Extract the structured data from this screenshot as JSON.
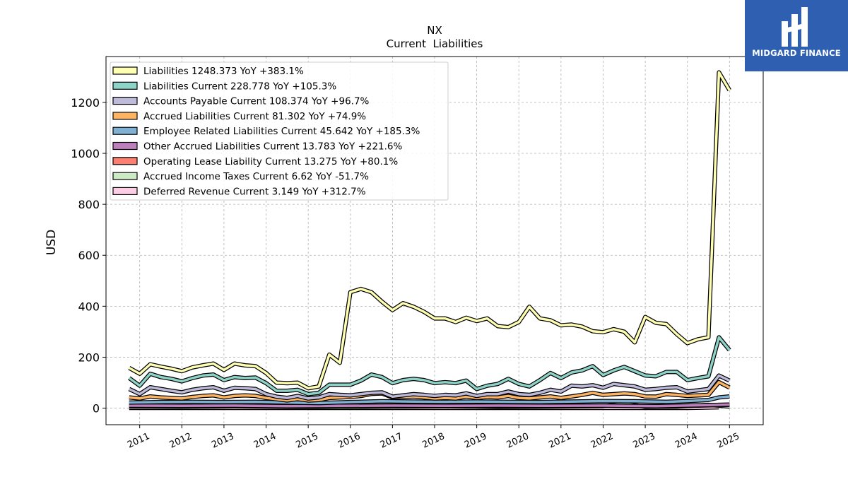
{
  "chart_data": {
    "type": "line",
    "title": "NX",
    "subtitle": "Current  Liabilities",
    "ylabel": "USD",
    "xlabel": "",
    "ylim": [
      -65,
      1380
    ],
    "xlim": [
      2010.2,
      2025.8
    ],
    "yticks": [
      0,
      200,
      400,
      600,
      800,
      1000,
      1200
    ],
    "xticks": [
      "2011",
      "2012",
      "2013",
      "2014",
      "2015",
      "2016",
      "2017",
      "2018",
      "2019",
      "2020",
      "2021",
      "2022",
      "2023",
      "2024",
      "2025"
    ],
    "grid": true,
    "legend_position": "upper-left",
    "series": [
      {
        "name": "Liabilities",
        "legend": "Liabilities  1248.373 YoY +383.1%",
        "color": "#ffffb3",
        "x": [
          2010.75,
          2011.0,
          2011.25,
          2011.5,
          2011.75,
          2012.0,
          2012.25,
          2012.5,
          2012.75,
          2013.0,
          2013.25,
          2013.5,
          2013.75,
          2014.0,
          2014.25,
          2014.5,
          2014.75,
          2015.0,
          2015.25,
          2015.5,
          2015.75,
          2016.0,
          2016.25,
          2016.5,
          2016.75,
          2017.0,
          2017.25,
          2017.5,
          2017.75,
          2018.0,
          2018.25,
          2018.5,
          2018.75,
          2019.0,
          2019.25,
          2019.5,
          2019.75,
          2020.0,
          2020.25,
          2020.5,
          2020.75,
          2021.0,
          2021.25,
          2021.5,
          2021.75,
          2022.0,
          2022.25,
          2022.5,
          2022.75,
          2023.0,
          2023.25,
          2023.5,
          2023.75,
          2024.0,
          2024.25,
          2024.5,
          2024.75,
          2025.0
        ],
        "y": [
          158,
          135,
          172,
          163,
          155,
          145,
          160,
          168,
          175,
          150,
          175,
          168,
          165,
          138,
          100,
          98,
          100,
          78,
          85,
          210,
          178,
          455,
          468,
          455,
          418,
          385,
          412,
          398,
          378,
          352,
          352,
          338,
          355,
          342,
          352,
          322,
          318,
          338,
          398,
          352,
          345,
          325,
          328,
          320,
          302,
          298,
          310,
          300,
          258,
          358,
          335,
          330,
          290,
          255,
          270,
          278,
          1318,
          1248
        ]
      },
      {
        "name": "Liabilities Current",
        "legend": "Liabilities Current  228.778 YoY +105.3%",
        "color": "#8dd3c7",
        "x": [
          2010.75,
          2011.0,
          2011.25,
          2011.5,
          2011.75,
          2012.0,
          2012.25,
          2012.5,
          2012.75,
          2013.0,
          2013.25,
          2013.5,
          2013.75,
          2014.0,
          2014.25,
          2014.5,
          2014.75,
          2015.0,
          2015.25,
          2015.5,
          2015.75,
          2016.0,
          2016.25,
          2016.5,
          2016.75,
          2017.0,
          2017.25,
          2017.5,
          2017.75,
          2018.0,
          2018.25,
          2018.5,
          2018.75,
          2019.0,
          2019.25,
          2019.5,
          2019.75,
          2020.0,
          2020.25,
          2020.5,
          2020.75,
          2021.0,
          2021.25,
          2021.5,
          2021.75,
          2022.0,
          2022.25,
          2022.5,
          2022.75,
          2023.0,
          2023.25,
          2023.5,
          2023.75,
          2024.0,
          2024.25,
          2024.5,
          2024.75,
          2025.0
        ],
        "y": [
          118,
          88,
          135,
          122,
          115,
          105,
          118,
          128,
          132,
          110,
          122,
          118,
          120,
          98,
          68,
          68,
          72,
          55,
          60,
          92,
          92,
          92,
          108,
          132,
          122,
          98,
          110,
          115,
          110,
          98,
          102,
          98,
          108,
          75,
          88,
          95,
          115,
          95,
          85,
          110,
          138,
          118,
          140,
          148,
          165,
          130,
          148,
          162,
          145,
          128,
          125,
          142,
          142,
          110,
          118,
          125,
          278,
          228
        ]
      },
      {
        "name": "Accounts Payable Current",
        "legend": "Accounts Payable Current  108.374 YoY +96.7%",
        "color": "#bebada",
        "x": [
          2010.75,
          2011.0,
          2011.25,
          2011.5,
          2011.75,
          2012.0,
          2012.25,
          2012.5,
          2012.75,
          2013.0,
          2013.25,
          2013.5,
          2013.75,
          2014.0,
          2014.25,
          2014.5,
          2014.75,
          2015.0,
          2015.25,
          2015.5,
          2015.75,
          2016.0,
          2016.25,
          2016.5,
          2016.75,
          2017.0,
          2017.25,
          2017.5,
          2017.75,
          2018.0,
          2018.25,
          2018.5,
          2018.75,
          2019.0,
          2019.25,
          2019.5,
          2019.75,
          2020.0,
          2020.25,
          2020.5,
          2020.75,
          2021.0,
          2021.25,
          2021.5,
          2021.75,
          2022.0,
          2022.25,
          2022.5,
          2022.75,
          2023.0,
          2023.25,
          2023.5,
          2023.75,
          2024.0,
          2024.25,
          2024.5,
          2024.75,
          2025.0
        ],
        "y": [
          75,
          55,
          82,
          75,
          68,
          62,
          72,
          78,
          82,
          68,
          80,
          78,
          75,
          55,
          45,
          40,
          48,
          38,
          42,
          55,
          52,
          50,
          55,
          60,
          62,
          45,
          50,
          55,
          52,
          48,
          52,
          50,
          58,
          48,
          55,
          55,
          65,
          55,
          52,
          60,
          72,
          65,
          88,
          85,
          90,
          80,
          95,
          90,
          85,
          72,
          75,
          80,
          82,
          65,
          70,
          75,
          128,
          108
        ]
      },
      {
        "name": "Accrued Liabilities Current",
        "legend": "Accrued Liabilities Current  81.302 YoY +74.9%",
        "color": "#fdb462",
        "x": [
          2010.75,
          2011.0,
          2011.25,
          2011.5,
          2011.75,
          2012.0,
          2012.25,
          2012.5,
          2012.75,
          2013.0,
          2013.25,
          2013.5,
          2013.75,
          2014.0,
          2014.25,
          2014.5,
          2014.75,
          2015.0,
          2015.25,
          2015.5,
          2015.75,
          2016.0,
          2016.25,
          2016.5,
          2016.75,
          2017.0,
          2017.25,
          2017.5,
          2017.75,
          2018.0,
          2018.25,
          2018.5,
          2018.75,
          2019.0,
          2019.25,
          2019.5,
          2019.75,
          2020.0,
          2020.25,
          2020.5,
          2020.75,
          2021.0,
          2021.25,
          2021.5,
          2021.75,
          2022.0,
          2022.25,
          2022.5,
          2022.75,
          2023.0,
          2023.25,
          2023.5,
          2023.75,
          2024.0,
          2024.25,
          2024.5,
          2024.75,
          2025.0
        ],
        "y": [
          42,
          38,
          46,
          42,
          40,
          38,
          44,
          48,
          50,
          42,
          48,
          50,
          48,
          40,
          35,
          30,
          36,
          30,
          32,
          40,
          42,
          44,
          48,
          56,
          58,
          42,
          44,
          46,
          42,
          38,
          40,
          38,
          46,
          40,
          44,
          42,
          48,
          40,
          38,
          42,
          46,
          40,
          46,
          52,
          60,
          52,
          55,
          58,
          55,
          46,
          45,
          55,
          52,
          48,
          50,
          52,
          102,
          81
        ]
      },
      {
        "name": "Employee Related Liabilities Current",
        "legend": "Employee Related Liabilities Current  45.642 YoY +185.3%",
        "color": "#80b1d3",
        "x": [
          2010.75,
          2011.5,
          2012.25,
          2013.0,
          2013.75,
          2014.5,
          2015.25,
          2016.0,
          2016.75,
          2017.5,
          2018.25,
          2019.0,
          2019.75,
          2020.5,
          2021.25,
          2022.0,
          2022.75,
          2023.5,
          2024.0,
          2024.5,
          2024.75,
          2025.0
        ],
        "y": [
          22,
          24,
          25,
          24,
          25,
          22,
          20,
          24,
          27,
          26,
          25,
          26,
          25,
          24,
          26,
          28,
          27,
          25,
          28,
          32,
          42,
          46
        ]
      },
      {
        "name": "Other Accrued Liabilities Current",
        "legend": "Other Accrued Liabilities Current  13.783 YoY +221.6%",
        "color": "#bc80bd",
        "x": [
          2010.75,
          2012.0,
          2013.25,
          2014.5,
          2015.75,
          2017.0,
          2018.25,
          2019.5,
          2020.75,
          2022.0,
          2023.25,
          2024.5,
          2025.0
        ],
        "y": [
          10,
          9,
          10,
          8,
          9,
          10,
          9,
          10,
          9,
          10,
          8,
          12,
          14
        ]
      },
      {
        "name": "Operating Lease Liability Current",
        "legend": "Operating Lease Liability Current  13.275 YoY +80.1%",
        "color": "#fb8072",
        "x": [
          2019.0,
          2019.75,
          2020.5,
          2021.25,
          2022.0,
          2022.75,
          2023.5,
          2024.25,
          2024.75,
          2025.0
        ],
        "y": [
          9,
          8,
          8,
          9,
          9,
          8,
          8,
          10,
          12,
          13
        ]
      },
      {
        "name": "Accrued Income Taxes Current",
        "legend": "Accrued Income Taxes Current  6.62 YoY -51.7%",
        "color": "#ccebc5",
        "x": [
          2010.75,
          2012.0,
          2013.25,
          2014.5,
          2015.75,
          2017.0,
          2018.25,
          2019.5,
          2020.75,
          2022.0,
          2022.5,
          2023.0,
          2023.75,
          2024.5,
          2025.0
        ],
        "y": [
          6,
          5,
          7,
          5,
          4,
          6,
          7,
          5,
          6,
          8,
          18,
          5,
          6,
          13,
          6.6
        ]
      },
      {
        "name": "Deferred Revenue Current",
        "legend": "Deferred Revenue Current  3.149 YoY +312.7%",
        "color": "#fccde5",
        "x": [
          2010.75,
          2012.0,
          2013.25,
          2014.5,
          2015.75,
          2017.0,
          2018.25,
          2019.5,
          2020.75,
          2022.0,
          2023.25,
          2024.0,
          2024.75
        ],
        "y": [
          1,
          1,
          1,
          1,
          1,
          1,
          1,
          1,
          1,
          1,
          1,
          1,
          3.1
        ]
      }
    ]
  },
  "logo": {
    "name": "MIDGARD FINANCE",
    "color": "#2f5fb0"
  }
}
